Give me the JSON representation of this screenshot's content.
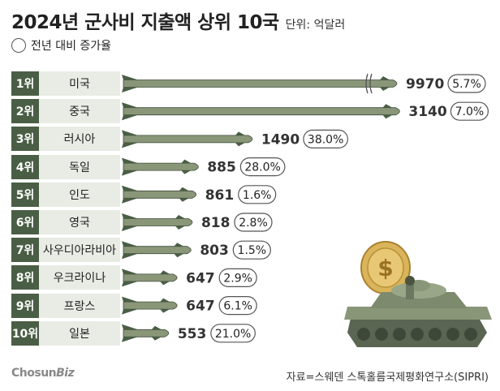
{
  "title": "2024년 군사비 지출액 상위 10국",
  "unit": "단위: 억달러",
  "legend_label": "전년 대비 증가율",
  "source": "자료=스웨덴 스톡홀름국제평화연구소(SIPRI)",
  "logo": {
    "part1": "Chosun",
    "part2": "Biz"
  },
  "chart_data": {
    "type": "bar",
    "categories": [
      "미국",
      "중국",
      "러시아",
      "독일",
      "인도",
      "영국",
      "사우디아라비아",
      "우크라이나",
      "프랑스",
      "일본"
    ],
    "ranks": [
      "1위",
      "2위",
      "3위",
      "4위",
      "5위",
      "6위",
      "7위",
      "8위",
      "9위",
      "10위"
    ],
    "values": [
      9970,
      3140,
      1490,
      885,
      861,
      818,
      803,
      647,
      647,
      553
    ],
    "growth": [
      "5.7%",
      "7.0%",
      "38.0%",
      "28.0%",
      "1.6%",
      "2.8%",
      "1.5%",
      "2.9%",
      "6.1%",
      "21.0%"
    ],
    "axis_break_on": "미국",
    "colors": {
      "missile_body": "#8a9678",
      "missile_dark": "#4a5e45",
      "rank_bg": "#4a5e45",
      "country_bg": "#e9ece5"
    }
  }
}
